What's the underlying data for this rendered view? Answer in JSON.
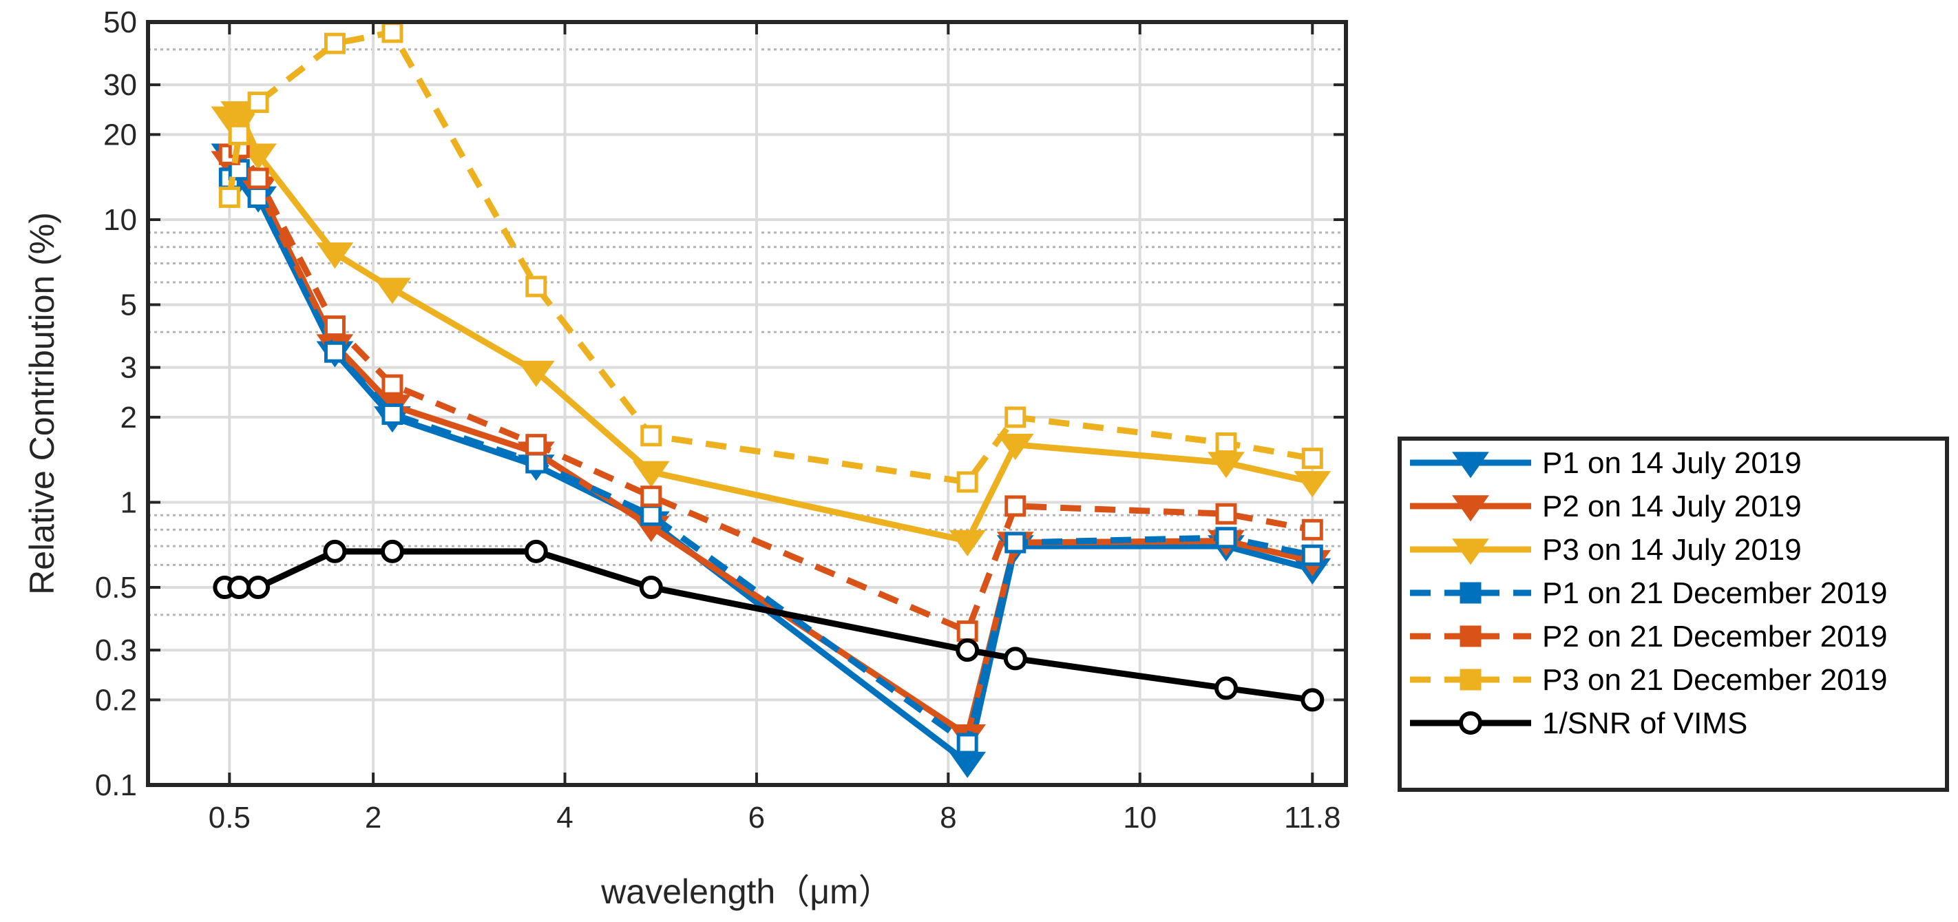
{
  "chart_data": {
    "type": "line",
    "xlabel": "wavelength（μm）",
    "ylabel": "Relative Contribution (%)",
    "xlim": [
      -0.35,
      12.15
    ],
    "ylim": [
      0.1,
      50
    ],
    "yscale": "log",
    "grid": true,
    "legend_position": "outside-right",
    "x_ticks": [
      0.5,
      2,
      4,
      6,
      8,
      10,
      11.8
    ],
    "x_tick_labels": [
      "0.5",
      "2",
      "4",
      "6",
      "8",
      "10",
      "11.8"
    ],
    "y_ticks": [
      0.1,
      0.2,
      0.3,
      0.5,
      1,
      2,
      3,
      5,
      10,
      20,
      30,
      50
    ],
    "y_tick_labels": [
      "0.1",
      "0.2",
      "0.3",
      "0.5",
      "1",
      "2",
      "3",
      "5",
      "10",
      "20",
      "30",
      "50"
    ],
    "series": [
      {
        "name": "P1 on 14 July 2019",
        "color": "#0072BD",
        "dash": "solid",
        "marker": "triangle-down",
        "x": [
          0.5,
          0.6,
          0.8,
          1.6,
          2.2,
          3.7,
          4.9,
          8.2,
          8.7,
          10.9,
          11.8
        ],
        "y": [
          17,
          14,
          12,
          3.4,
          2.0,
          1.35,
          0.85,
          0.12,
          0.7,
          0.7,
          0.58
        ]
      },
      {
        "name": "P2 on 14 July 2019",
        "color": "#D95319",
        "dash": "solid",
        "marker": "triangle-down",
        "x": [
          0.5,
          0.6,
          0.8,
          1.6,
          2.2,
          3.7,
          4.9,
          8.2,
          8.7,
          10.9,
          11.8
        ],
        "y": [
          16,
          17,
          13,
          3.6,
          2.2,
          1.5,
          0.82,
          0.15,
          0.72,
          0.73,
          0.62
        ]
      },
      {
        "name": "P3 on 14 July 2019",
        "color": "#EDB120",
        "dash": "solid",
        "marker": "triangle-down",
        "x": [
          0.5,
          0.6,
          0.8,
          1.6,
          2.2,
          3.7,
          4.9,
          8.2,
          8.7,
          10.9,
          11.8
        ],
        "y": [
          23,
          24,
          17,
          7.6,
          5.7,
          2.9,
          1.28,
          0.73,
          1.6,
          1.38,
          1.18
        ]
      },
      {
        "name": "P1 on 21 December 2019",
        "color": "#0072BD",
        "dash": "dashed",
        "marker": "square",
        "x": [
          0.5,
          0.6,
          0.8,
          1.6,
          2.2,
          3.7,
          4.9,
          8.2,
          8.7,
          10.9,
          11.8
        ],
        "y": [
          14,
          15,
          12,
          3.4,
          2.05,
          1.38,
          0.9,
          0.14,
          0.72,
          0.75,
          0.65
        ]
      },
      {
        "name": "P2 on 21 December 2019",
        "color": "#D95319",
        "dash": "dashed",
        "marker": "square",
        "x": [
          0.5,
          0.6,
          0.8,
          1.6,
          2.2,
          3.7,
          4.9,
          8.2,
          8.7,
          10.9,
          11.8
        ],
        "y": [
          17,
          18,
          14,
          4.2,
          2.6,
          1.6,
          1.05,
          0.35,
          0.97,
          0.91,
          0.8
        ]
      },
      {
        "name": "P3 on 21 December 2019",
        "color": "#EDB120",
        "dash": "dashed",
        "marker": "square",
        "x": [
          0.5,
          0.6,
          0.8,
          1.6,
          2.2,
          3.7,
          4.9,
          8.2,
          8.7,
          10.9,
          11.8
        ],
        "y": [
          12,
          20,
          26,
          42,
          46,
          5.8,
          1.72,
          1.18,
          2.0,
          1.62,
          1.43
        ]
      },
      {
        "name": "1/SNR of VIMS",
        "color": "#000000",
        "dash": "solid",
        "marker": "circle",
        "x": [
          0.45,
          0.6,
          0.8,
          1.6,
          2.2,
          3.7,
          4.9,
          8.2,
          8.7,
          10.9,
          11.8
        ],
        "y": [
          0.5,
          0.5,
          0.5,
          0.67,
          0.67,
          0.67,
          0.5,
          0.3,
          0.28,
          0.22,
          0.2
        ]
      }
    ]
  }
}
